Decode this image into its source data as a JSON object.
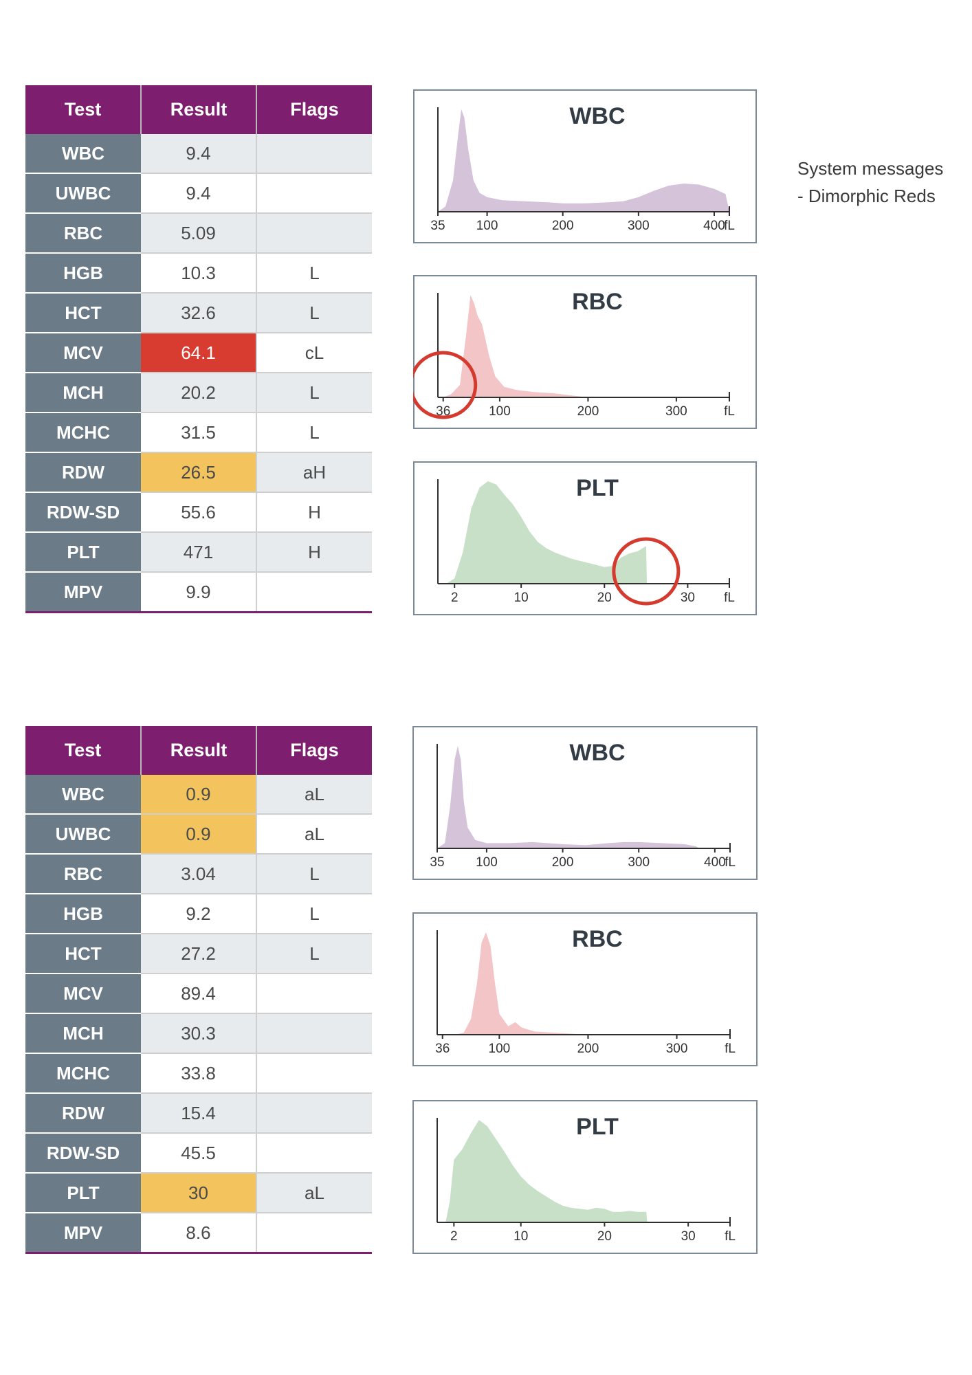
{
  "tables": [
    {
      "headers": [
        "Test",
        "Result",
        "Flags"
      ],
      "rows": [
        {
          "test": "WBC",
          "result": "9.4",
          "flag": "",
          "highlight": ""
        },
        {
          "test": "UWBC",
          "result": "9.4",
          "flag": "",
          "highlight": ""
        },
        {
          "test": "RBC",
          "result": "5.09",
          "flag": "",
          "highlight": ""
        },
        {
          "test": "HGB",
          "result": "10.3",
          "flag": "L",
          "highlight": ""
        },
        {
          "test": "HCT",
          "result": "32.6",
          "flag": "L",
          "highlight": ""
        },
        {
          "test": "MCV",
          "result": "64.1",
          "flag": "cL",
          "highlight": "critical"
        },
        {
          "test": "MCH",
          "result": "20.2",
          "flag": "L",
          "highlight": ""
        },
        {
          "test": "MCHC",
          "result": "31.5",
          "flag": "L",
          "highlight": ""
        },
        {
          "test": "RDW",
          "result": "26.5",
          "flag": "aH",
          "highlight": "abnormal"
        },
        {
          "test": "RDW-SD",
          "result": "55.6",
          "flag": "H",
          "highlight": ""
        },
        {
          "test": "PLT",
          "result": "471",
          "flag": "H",
          "highlight": ""
        },
        {
          "test": "MPV",
          "result": "9.9",
          "flag": "",
          "highlight": ""
        }
      ]
    },
    {
      "headers": [
        "Test",
        "Result",
        "Flags"
      ],
      "rows": [
        {
          "test": "WBC",
          "result": "0.9",
          "flag": "aL",
          "highlight": "abnormal"
        },
        {
          "test": "UWBC",
          "result": "0.9",
          "flag": "aL",
          "highlight": "abnormal"
        },
        {
          "test": "RBC",
          "result": "3.04",
          "flag": "L",
          "highlight": ""
        },
        {
          "test": "HGB",
          "result": "9.2",
          "flag": "L",
          "highlight": ""
        },
        {
          "test": "HCT",
          "result": "27.2",
          "flag": "L",
          "highlight": ""
        },
        {
          "test": "MCV",
          "result": "89.4",
          "flag": "",
          "highlight": ""
        },
        {
          "test": "MCH",
          "result": "30.3",
          "flag": "",
          "highlight": ""
        },
        {
          "test": "MCHC",
          "result": "33.8",
          "flag": "",
          "highlight": ""
        },
        {
          "test": "RDW",
          "result": "15.4",
          "flag": "",
          "highlight": ""
        },
        {
          "test": "RDW-SD",
          "result": "45.5",
          "flag": "",
          "highlight": ""
        },
        {
          "test": "PLT",
          "result": "30",
          "flag": "aL",
          "highlight": "abnormal"
        },
        {
          "test": "MPV",
          "result": "8.6",
          "flag": "",
          "highlight": ""
        }
      ]
    }
  ],
  "system_messages": {
    "title": "System messages",
    "items": [
      "- Dimorphic Reds"
    ]
  },
  "colors": {
    "header": "#7d1f6e",
    "test_cell": "#6b7b87",
    "critical": "#d83c31",
    "abnormal": "#f3c35d",
    "wbc_fill": "#d4c3d9",
    "rbc_fill": "#f3c5c7",
    "plt_fill": "#c8e0c8",
    "highlight_ring": "#d53a2e"
  },
  "chart_data": [
    {
      "type": "area",
      "title": "WBC",
      "unit": "fL",
      "xticks": [
        "35",
        "100",
        "200",
        "300",
        "400"
      ],
      "xlim": [
        35,
        420
      ],
      "x": [
        35,
        45,
        55,
        62,
        66,
        70,
        75,
        82,
        90,
        100,
        120,
        150,
        180,
        200,
        230,
        260,
        280,
        300,
        320,
        340,
        360,
        380,
        400,
        415,
        420
      ],
      "y": [
        0,
        0.05,
        0.3,
        0.75,
        0.98,
        0.9,
        0.6,
        0.3,
        0.18,
        0.14,
        0.11,
        0.1,
        0.09,
        0.08,
        0.08,
        0.09,
        0.1,
        0.14,
        0.2,
        0.25,
        0.27,
        0.26,
        0.22,
        0.17,
        0
      ]
    },
    {
      "type": "area",
      "title": "RBC",
      "unit": "fL",
      "xticks": [
        "36",
        "100",
        "200",
        "300"
      ],
      "xlim": [
        30,
        360
      ],
      "x": [
        36,
        45,
        55,
        62,
        67,
        71,
        75,
        80,
        88,
        95,
        105,
        120,
        140,
        160,
        180,
        190,
        200
      ],
      "y": [
        0,
        0.03,
        0.12,
        0.6,
        0.98,
        0.9,
        0.78,
        0.7,
        0.4,
        0.2,
        0.1,
        0.07,
        0.05,
        0.04,
        0.02,
        0.01,
        0
      ],
      "highlight": {
        "x": 36
      }
    },
    {
      "type": "area",
      "title": "PLT",
      "unit": "fL",
      "xticks": [
        "2",
        "10",
        "20",
        "30"
      ],
      "xlim": [
        0,
        35
      ],
      "x": [
        1,
        2,
        3,
        4,
        5,
        6,
        7,
        8,
        9,
        10,
        11,
        12,
        13,
        14,
        15,
        16,
        17,
        18,
        19,
        20,
        21,
        22,
        23,
        24,
        25,
        25.1
      ],
      "y": [
        0,
        0.05,
        0.3,
        0.72,
        0.92,
        0.98,
        0.95,
        0.85,
        0.76,
        0.64,
        0.5,
        0.4,
        0.34,
        0.3,
        0.27,
        0.24,
        0.22,
        0.2,
        0.18,
        0.16,
        0.17,
        0.25,
        0.29,
        0.31,
        0.36,
        0
      ],
      "highlight": {
        "x": 25
      }
    },
    {
      "type": "area",
      "title": "WBC",
      "unit": "fL",
      "xticks": [
        "35",
        "100",
        "200",
        "300",
        "400"
      ],
      "xlim": [
        35,
        420
      ],
      "x": [
        35,
        45,
        52,
        58,
        62,
        66,
        70,
        75,
        85,
        100,
        130,
        160,
        200,
        230,
        260,
        280,
        300,
        330,
        360,
        375,
        380
      ],
      "y": [
        0,
        0.05,
        0.4,
        0.85,
        0.98,
        0.85,
        0.45,
        0.2,
        0.08,
        0.05,
        0.05,
        0.06,
        0.04,
        0.03,
        0.05,
        0.06,
        0.06,
        0.05,
        0.04,
        0.02,
        0
      ],
      "highlight": null
    },
    {
      "type": "area",
      "title": "RBC",
      "unit": "fL",
      "xticks": [
        "36",
        "100",
        "200",
        "300"
      ],
      "xlim": [
        30,
        360
      ],
      "x": [
        50,
        60,
        68,
        75,
        80,
        85,
        90,
        95,
        100,
        110,
        118,
        125,
        132,
        140,
        160,
        180,
        200
      ],
      "y": [
        0,
        0.02,
        0.15,
        0.5,
        0.88,
        0.98,
        0.85,
        0.5,
        0.2,
        0.08,
        0.12,
        0.07,
        0.05,
        0.03,
        0.02,
        0.01,
        0
      ],
      "highlight": null
    },
    {
      "type": "area",
      "title": "PLT",
      "unit": "fL",
      "xticks": [
        "2",
        "10",
        "20",
        "30"
      ],
      "xlim": [
        0,
        35
      ],
      "x": [
        1,
        1.5,
        2,
        3,
        4,
        5,
        6,
        7,
        8,
        9,
        10,
        11,
        12,
        13,
        14,
        15,
        16,
        17,
        18,
        19,
        20,
        21,
        22,
        23,
        24,
        25,
        25.1
      ],
      "y": [
        0,
        0.2,
        0.6,
        0.7,
        0.85,
        0.98,
        0.92,
        0.8,
        0.68,
        0.55,
        0.44,
        0.36,
        0.3,
        0.25,
        0.2,
        0.16,
        0.14,
        0.13,
        0.12,
        0.14,
        0.13,
        0.1,
        0.1,
        0.11,
        0.1,
        0.1,
        0
      ]
    }
  ]
}
